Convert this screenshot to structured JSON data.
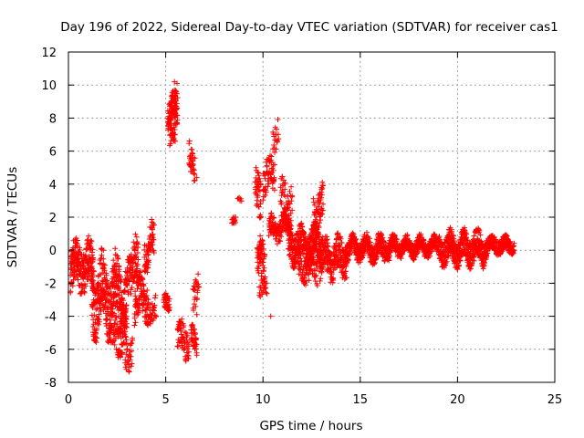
{
  "chart_data": {
    "type": "scatter",
    "title": "Day 196 of 2022, Sidereal Day-to-day VTEC variation (SDTVAR) for receiver cas1",
    "xlabel": "GPS time / hours",
    "ylabel": "SDTVAR / TECUs",
    "xlim": [
      0,
      25
    ],
    "ylim": [
      -8,
      12
    ],
    "xticks": [
      0,
      5,
      10,
      15,
      20,
      25
    ],
    "yticks": [
      -8,
      -6,
      -4,
      -2,
      0,
      2,
      4,
      6,
      8,
      10,
      12
    ],
    "grid": true,
    "marker": "+",
    "series": [
      {
        "name": "SDTVAR",
        "color": "#ff0000",
        "segments": [
          {
            "t0": 0.1,
            "t1": 1.3,
            "center": -1.0,
            "spread": 1.3,
            "wave": 0.6,
            "n": 220
          },
          {
            "t0": 1.2,
            "t1": 3.0,
            "center": -2.8,
            "spread": 1.8,
            "wave": 1.2,
            "n": 380
          },
          {
            "t0": 2.2,
            "t1": 3.0,
            "center": -5.0,
            "spread": 1.1,
            "wave": 0.5,
            "n": 80
          },
          {
            "t0": 2.9,
            "t1": 3.3,
            "center": -6.2,
            "spread": 0.9,
            "wave": 0.3,
            "n": 30
          },
          {
            "t0": 3.0,
            "t1": 3.6,
            "center": -1.0,
            "spread": 1.4,
            "wave": 0.6,
            "n": 90
          },
          {
            "t0": 3.4,
            "t1": 4.1,
            "center": -3.0,
            "spread": 1.2,
            "wave": 0.6,
            "n": 100
          },
          {
            "t0": 3.9,
            "t1": 4.4,
            "center": 0.2,
            "spread": 1.0,
            "wave": 0.8,
            "n": 70
          },
          {
            "t0": 4.1,
            "t1": 4.5,
            "center": -3.5,
            "spread": 0.7,
            "wave": 0.3,
            "n": 30
          },
          {
            "t0": 4.9,
            "t1": 5.2,
            "center": -3.3,
            "spread": 0.5,
            "wave": 0.3,
            "n": 35
          },
          {
            "t0": 5.1,
            "t1": 5.6,
            "center": 8.3,
            "spread": 0.7,
            "wave": 0.5,
            "n": 90
          },
          {
            "t0": 5.2,
            "t1": 5.5,
            "center": 6.9,
            "spread": 0.6,
            "wave": 0.3,
            "n": 30
          },
          {
            "t0": 5.3,
            "t1": 5.6,
            "center": 9.6,
            "spread": 0.5,
            "wave": 0.3,
            "n": 20
          },
          {
            "t0": 5.6,
            "t1": 6.2,
            "center": -5.5,
            "spread": 0.9,
            "wave": 0.5,
            "n": 60
          },
          {
            "t0": 6.2,
            "t1": 6.5,
            "center": 5.5,
            "spread": 0.9,
            "wave": 0.5,
            "n": 35
          },
          {
            "t0": 6.3,
            "t1": 6.6,
            "center": -5.5,
            "spread": 0.7,
            "wave": 0.4,
            "n": 40
          },
          {
            "t0": 6.4,
            "t1": 6.7,
            "center": -2.5,
            "spread": 0.9,
            "wave": 0.4,
            "n": 25
          },
          {
            "t0": 8.4,
            "t1": 8.6,
            "center": 2.0,
            "spread": 0.3,
            "wave": 0.2,
            "n": 15
          },
          {
            "t0": 8.7,
            "t1": 8.9,
            "center": 3.0,
            "spread": 0.1,
            "wave": 0.1,
            "n": 6
          },
          {
            "t0": 9.6,
            "t1": 9.9,
            "center": 3.2,
            "spread": 1.2,
            "wave": 0.6,
            "n": 40
          },
          {
            "t0": 9.7,
            "t1": 10.1,
            "center": -0.8,
            "spread": 1.2,
            "wave": 0.5,
            "n": 60
          },
          {
            "t0": 9.8,
            "t1": 10.2,
            "center": -2.4,
            "spread": 0.5,
            "wave": 0.3,
            "n": 20
          },
          {
            "t0": 10.0,
            "t1": 10.6,
            "center": 4.5,
            "spread": 1.0,
            "wave": 0.5,
            "n": 60
          },
          {
            "t0": 10.5,
            "t1": 10.8,
            "center": 6.9,
            "spread": 0.8,
            "wave": 0.4,
            "n": 18
          },
          {
            "t0": 10.3,
            "t1": 11.4,
            "center": 1.3,
            "spread": 0.6,
            "wave": 0.4,
            "n": 120
          },
          {
            "t0": 10.9,
            "t1": 11.5,
            "center": 2.8,
            "spread": 1.3,
            "wave": 0.6,
            "n": 60
          },
          {
            "t0": 11.3,
            "t1": 13.0,
            "center": 0.3,
            "spread": 0.9,
            "wave": 0.5,
            "n": 320
          },
          {
            "t0": 11.8,
            "t1": 12.8,
            "center": -1.2,
            "spread": 0.7,
            "wave": 0.4,
            "n": 80
          },
          {
            "t0": 12.6,
            "t1": 13.1,
            "center": 2.5,
            "spread": 1.1,
            "wave": 0.6,
            "n": 60
          },
          {
            "t0": 12.9,
            "t1": 14.3,
            "center": -0.5,
            "spread": 1.0,
            "wave": 0.6,
            "n": 220
          },
          {
            "t0": 14.2,
            "t1": 16.5,
            "center": 0.1,
            "spread": 0.6,
            "wave": 0.4,
            "n": 380
          },
          {
            "t0": 16.5,
            "t1": 19.0,
            "center": 0.2,
            "spread": 0.45,
            "wave": 0.35,
            "n": 380
          },
          {
            "t0": 19.0,
            "t1": 21.5,
            "center": 0.1,
            "spread": 0.8,
            "wave": 0.5,
            "n": 480
          },
          {
            "t0": 21.5,
            "t1": 22.9,
            "center": 0.3,
            "spread": 0.4,
            "wave": 0.25,
            "n": 220
          }
        ],
        "isolated_points": [
          {
            "x": 6.6,
            "y": -3.9
          },
          {
            "x": 10.4,
            "y": -4.0
          },
          {
            "x": 6.6,
            "y": 4.4
          },
          {
            "x": 3.1,
            "y": -7.3
          },
          {
            "x": 5.45,
            "y": 10.2
          }
        ]
      }
    ]
  }
}
